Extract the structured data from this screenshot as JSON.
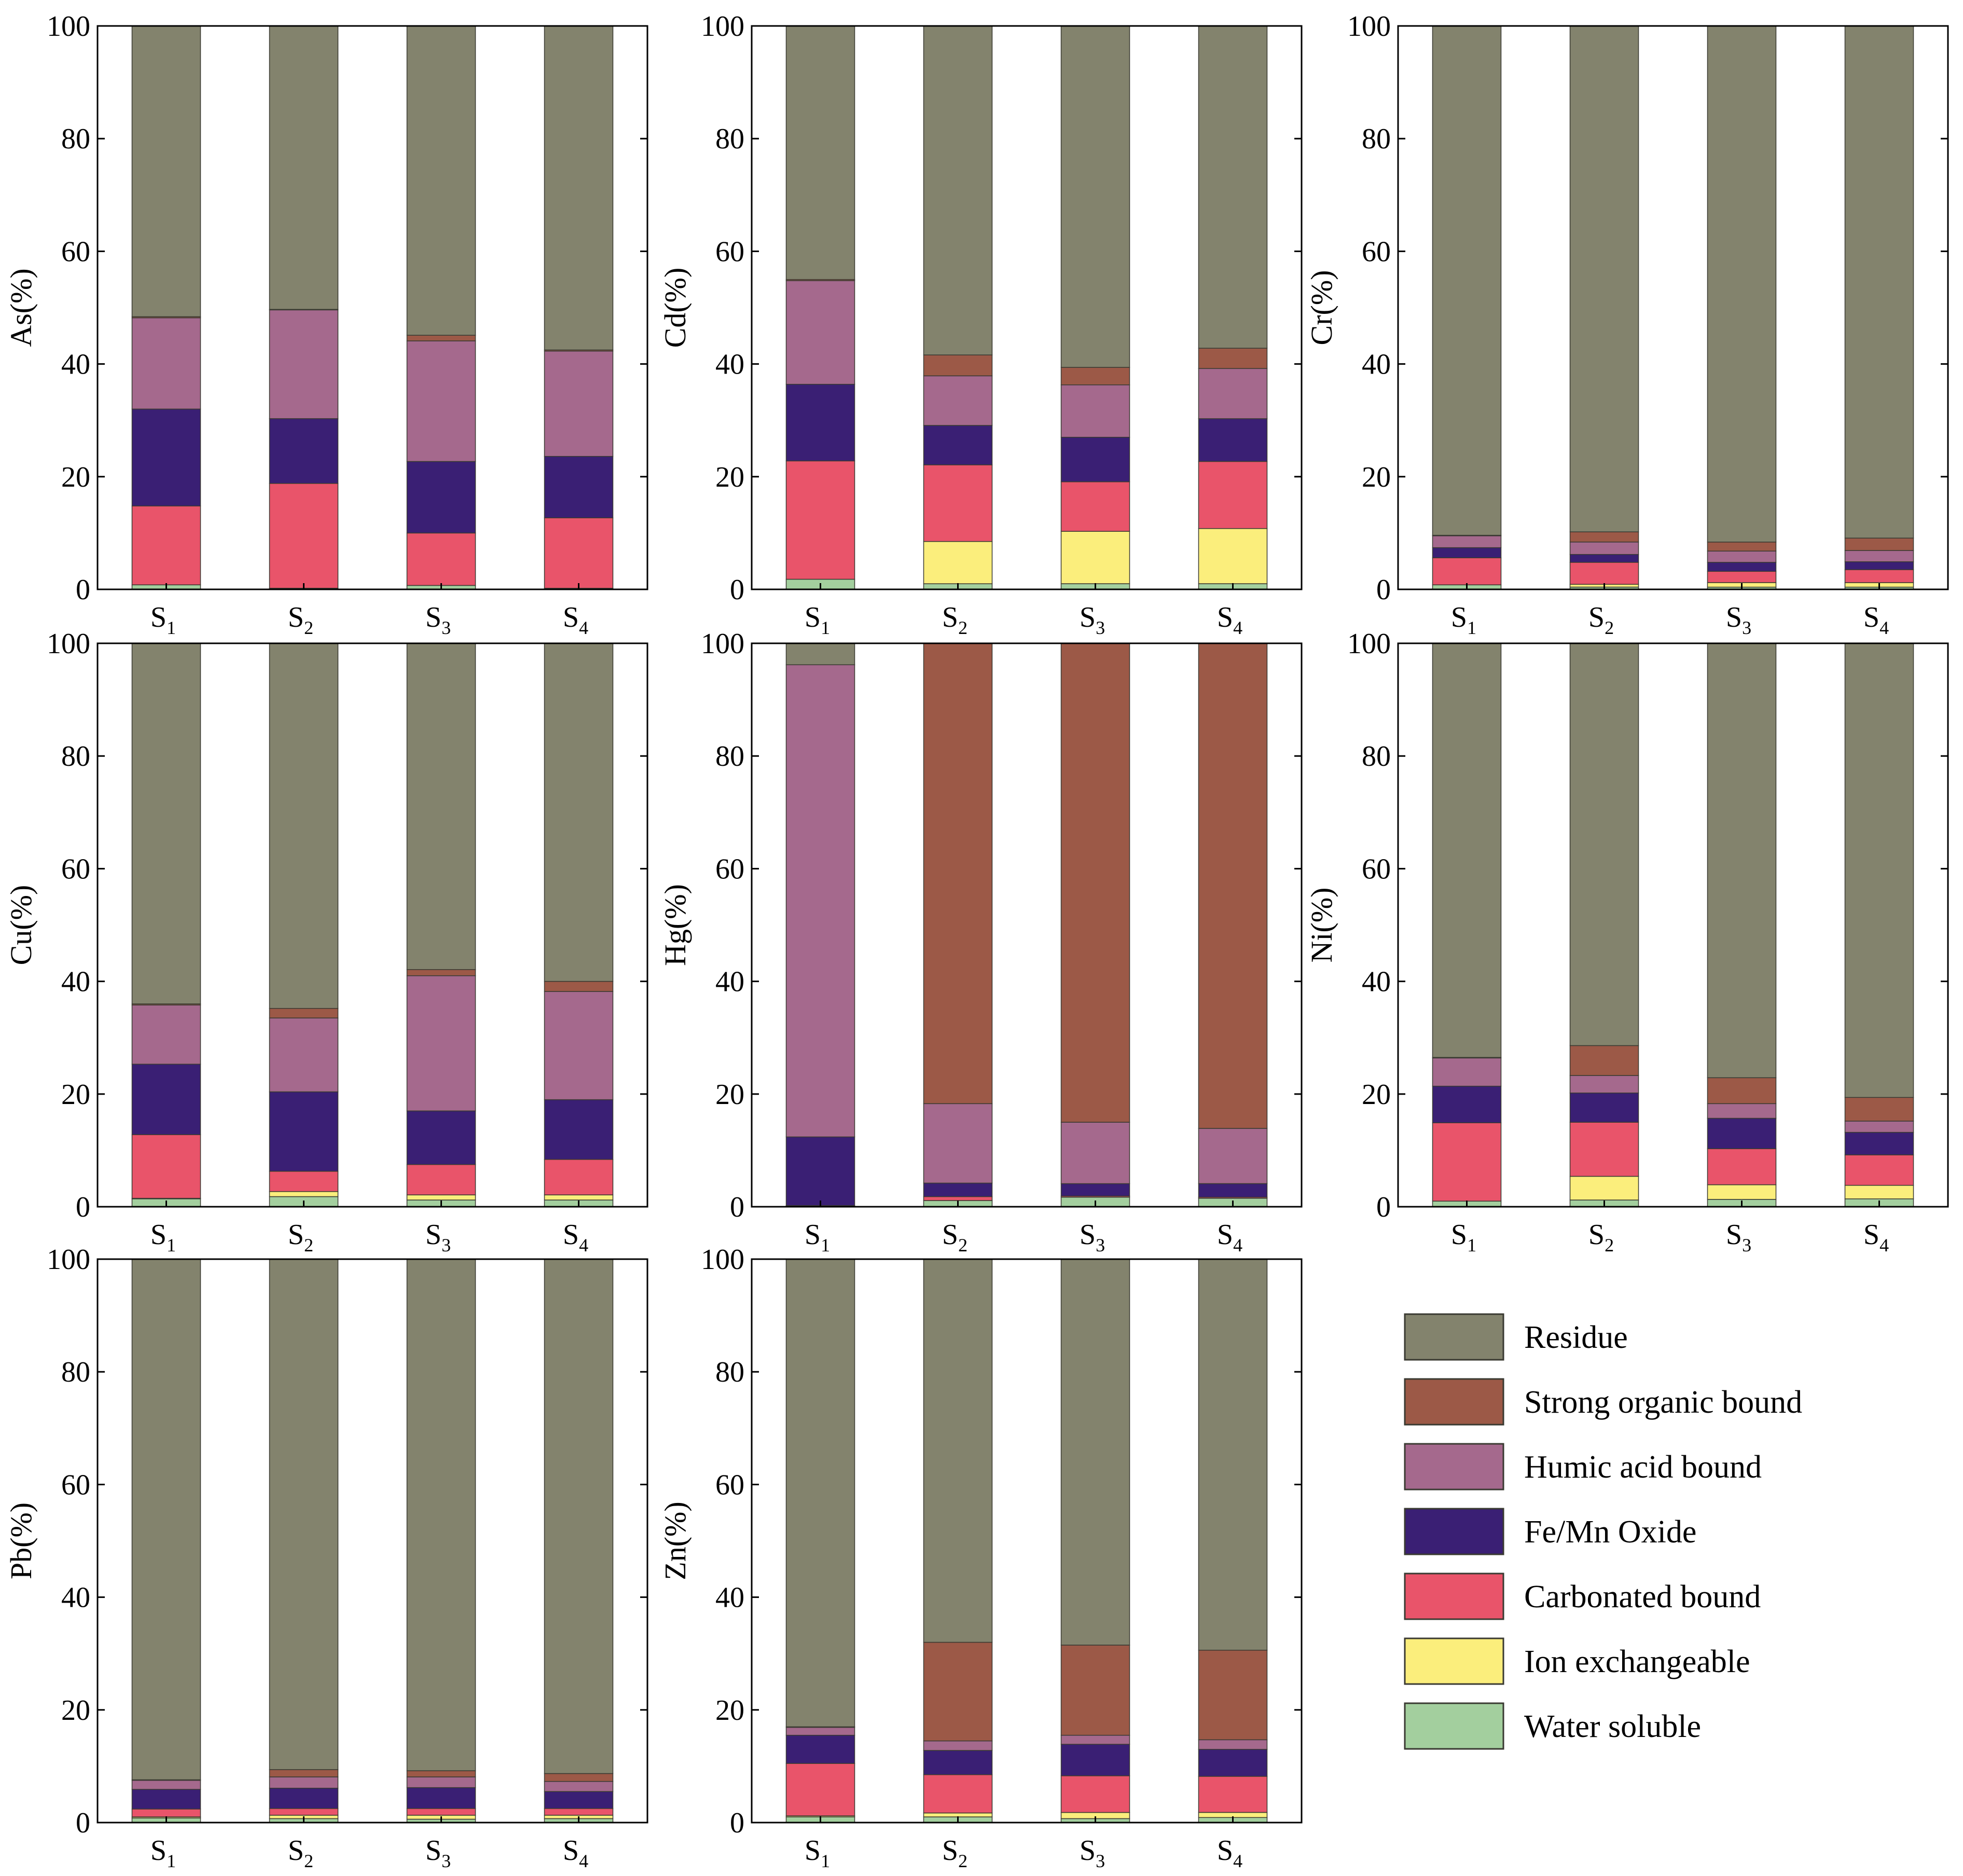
{
  "chart_data": {
    "type": "bar",
    "stacked": true,
    "categories": [
      "S1",
      "S2",
      "S3",
      "S4"
    ],
    "category_labels": [
      {
        "main": "S",
        "sub": "1"
      },
      {
        "main": "S",
        "sub": "2"
      },
      {
        "main": "S",
        "sub": "3"
      },
      {
        "main": "S",
        "sub": "4"
      }
    ],
    "yticks": [
      "0",
      "20",
      "40",
      "60",
      "80",
      "100"
    ],
    "ylim": [
      0,
      100
    ],
    "fractions": [
      {
        "name": "Water soluble",
        "color": "#a3cf9e"
      },
      {
        "name": "Ion exchangeable",
        "color": "#fbee7c"
      },
      {
        "name": "Carbonated  bound",
        "color": "#e9546a"
      },
      {
        "name": "Fe/Mn Oxide",
        "color": "#3a1f74"
      },
      {
        "name": "Humic acid bound",
        "color": "#a5698d"
      },
      {
        "name": "Strong organic bound",
        "color": "#9c5947"
      },
      {
        "name": "Residue",
        "color": "#83836d"
      }
    ],
    "legend_order": [
      "Residue",
      "Strong organic bound",
      "Humic acid bound",
      "Fe/Mn Oxide",
      "Carbonated  bound",
      "Ion exchangeable",
      "Water soluble"
    ],
    "panels": [
      {
        "element": "As",
        "ylabel": "As(%)",
        "series": [
          {
            "name": "Water soluble",
            "values": [
              0.8,
              0.2,
              0.7,
              0.2
            ]
          },
          {
            "name": "Ion exchangeable",
            "values": [
              0,
              0,
              0,
              0
            ]
          },
          {
            "name": "Carbonated  bound",
            "values": [
              14.0,
              18.6,
              9.3,
              12.5
            ]
          },
          {
            "name": "Fe/Mn Oxide",
            "values": [
              17.2,
              11.5,
              12.7,
              10.9
            ]
          },
          {
            "name": "Humic acid bound",
            "values": [
              16.2,
              19.3,
              21.4,
              18.7
            ]
          },
          {
            "name": "Strong organic bound",
            "values": [
              0.2,
              0.1,
              1.0,
              0.2
            ]
          },
          {
            "name": "Residue",
            "values": [
              51.6,
              50.3,
              54.9,
              57.5
            ]
          }
        ]
      },
      {
        "element": "Cd",
        "ylabel": "Cd(%)",
        "series": [
          {
            "name": "Water soluble",
            "values": [
              1.8,
              1.0,
              1.0,
              1.0
            ]
          },
          {
            "name": "Ion exchangeable",
            "values": [
              0,
              7.5,
              9.3,
              9.8
            ]
          },
          {
            "name": "Carbonated  bound",
            "values": [
              21.0,
              13.6,
              8.8,
              11.9
            ]
          },
          {
            "name": "Fe/Mn Oxide",
            "values": [
              13.6,
              7.0,
              7.9,
              7.6
            ]
          },
          {
            "name": "Humic acid bound",
            "values": [
              18.4,
              8.8,
              9.3,
              8.9
            ]
          },
          {
            "name": "Strong organic bound",
            "values": [
              0.2,
              3.7,
              3.1,
              3.6
            ]
          },
          {
            "name": "Residue",
            "values": [
              45.0,
              58.4,
              60.6,
              57.2
            ]
          }
        ]
      },
      {
        "element": "Cr",
        "ylabel": "Cr(%)",
        "series": [
          {
            "name": "Water soluble",
            "values": [
              0.8,
              0.4,
              0.4,
              0.4
            ]
          },
          {
            "name": "Ion exchangeable",
            "values": [
              0,
              0.5,
              0.8,
              0.8
            ]
          },
          {
            "name": "Carbonated  bound",
            "values": [
              4.8,
              3.9,
              2.0,
              2.3
            ]
          },
          {
            "name": "Fe/Mn Oxide",
            "values": [
              1.8,
              1.4,
              1.6,
              1.4
            ]
          },
          {
            "name": "Humic acid bound",
            "values": [
              2.1,
              2.2,
              2.0,
              2.0
            ]
          },
          {
            "name": "Strong organic bound",
            "values": [
              0.1,
              1.8,
              1.6,
              2.2
            ]
          },
          {
            "name": "Residue",
            "values": [
              90.4,
              89.8,
              91.6,
              90.9
            ]
          }
        ]
      },
      {
        "element": "Cu",
        "ylabel": "Cu(%)",
        "series": [
          {
            "name": "Water soluble",
            "values": [
              1.4,
              1.8,
              1.2,
              1.2
            ]
          },
          {
            "name": "Ion exchangeable",
            "values": [
              0.1,
              0.9,
              0.9,
              0.9
            ]
          },
          {
            "name": "Carbonated  bound",
            "values": [
              11.3,
              3.6,
              5.4,
              6.3
            ]
          },
          {
            "name": "Fe/Mn Oxide",
            "values": [
              12.5,
              14.1,
              9.5,
              10.6
            ]
          },
          {
            "name": "Humic acid bound",
            "values": [
              10.5,
              13.1,
              24.0,
              19.2
            ]
          },
          {
            "name": "Strong organic bound",
            "values": [
              0.2,
              1.7,
              1.1,
              1.8
            ]
          },
          {
            "name": "Residue",
            "values": [
              64.0,
              64.8,
              57.9,
              60.0
            ]
          }
        ]
      },
      {
        "element": "Hg",
        "ylabel": "Hg(%)",
        "series": [
          {
            "name": "Water soluble",
            "values": [
              0.2,
              1.1,
              1.7,
              1.5
            ]
          },
          {
            "name": "Ion exchangeable",
            "values": [
              0,
              0,
              0,
              0
            ]
          },
          {
            "name": "Carbonated  bound",
            "values": [
              0,
              0.7,
              0.2,
              0.2
            ]
          },
          {
            "name": "Fe/Mn Oxide",
            "values": [
              12.2,
              2.4,
              2.2,
              2.4
            ]
          },
          {
            "name": "Humic acid bound",
            "values": [
              83.8,
              14.1,
              10.9,
              9.8
            ]
          },
          {
            "name": "Strong organic bound",
            "values": [
              0,
              81.7,
              85.0,
              86.1
            ]
          },
          {
            "name": "Residue",
            "values": [
              3.8,
              0,
              0,
              0
            ]
          }
        ]
      },
      {
        "element": "Ni",
        "ylabel": "Ni(%)",
        "series": [
          {
            "name": "Water soluble",
            "values": [
              1.0,
              1.2,
              1.3,
              1.4
            ]
          },
          {
            "name": "Ion exchangeable",
            "values": [
              0,
              4.2,
              2.6,
              2.4
            ]
          },
          {
            "name": "Carbonated  bound",
            "values": [
              13.9,
              9.6,
              6.4,
              5.4
            ]
          },
          {
            "name": "Fe/Mn Oxide",
            "values": [
              6.5,
              5.2,
              5.4,
              4.0
            ]
          },
          {
            "name": "Humic acid bound",
            "values": [
              5.0,
              3.1,
              2.6,
              2.0
            ]
          },
          {
            "name": "Strong organic bound",
            "values": [
              0.1,
              5.3,
              4.6,
              4.2
            ]
          },
          {
            "name": "Residue",
            "values": [
              73.5,
              71.4,
              77.1,
              80.6
            ]
          }
        ]
      },
      {
        "element": "Pb",
        "ylabel": "Pb(%)",
        "series": [
          {
            "name": "Water soluble",
            "values": [
              0.8,
              0.7,
              0.6,
              0.7
            ]
          },
          {
            "name": "Ion exchangeable",
            "values": [
              0.2,
              0.6,
              0.7,
              0.6
            ]
          },
          {
            "name": "Carbonated  bound",
            "values": [
              1.4,
              1.2,
              1.2,
              1.2
            ]
          },
          {
            "name": "Fe/Mn Oxide",
            "values": [
              3.5,
              3.6,
              3.7,
              3.0
            ]
          },
          {
            "name": "Humic acid bound",
            "values": [
              1.6,
              2.0,
              1.9,
              1.8
            ]
          },
          {
            "name": "Strong organic bound",
            "values": [
              0.1,
              1.3,
              1.1,
              1.4
            ]
          },
          {
            "name": "Residue",
            "values": [
              92.4,
              90.6,
              90.8,
              91.3
            ]
          }
        ]
      },
      {
        "element": "Zn",
        "ylabel": "Zn(%)",
        "series": [
          {
            "name": "Water soluble",
            "values": [
              1.0,
              1.0,
              0.7,
              0.9
            ]
          },
          {
            "name": "Ion exchangeable",
            "values": [
              0.2,
              0.7,
              1.1,
              0.9
            ]
          },
          {
            "name": "Carbonated  bound",
            "values": [
              9.3,
              6.8,
              6.5,
              6.4
            ]
          },
          {
            "name": "Fe/Mn Oxide",
            "values": [
              5.0,
              4.3,
              5.6,
              4.8
            ]
          },
          {
            "name": "Humic acid bound",
            "values": [
              1.4,
              1.7,
              1.6,
              1.7
            ]
          },
          {
            "name": "Strong organic bound",
            "values": [
              0.1,
              17.5,
              16.0,
              15.9
            ]
          },
          {
            "name": "Residue",
            "values": [
              83.0,
              68.0,
              68.5,
              69.4
            ]
          }
        ]
      }
    ]
  }
}
